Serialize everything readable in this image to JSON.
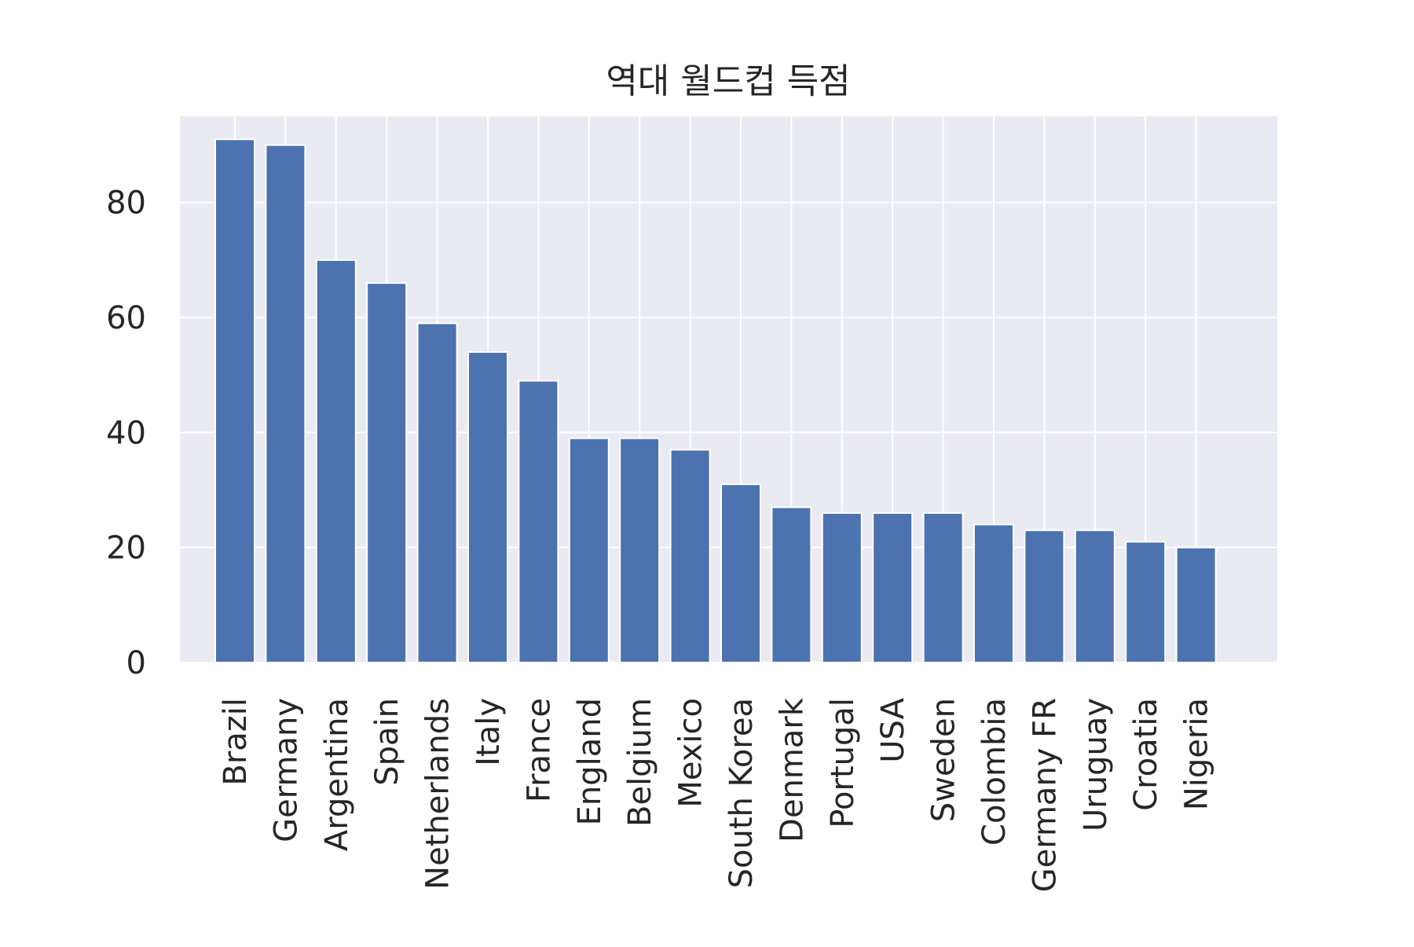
{
  "chart_data": {
    "type": "bar",
    "title": "역대 월드컵 득점",
    "xlabel": "",
    "ylabel": "",
    "categories": [
      "Brazil",
      "Germany",
      "Argentina",
      "Spain",
      "Netherlands",
      "Italy",
      "France",
      "England",
      "Belgium",
      "Mexico",
      "South Korea",
      "Denmark",
      "Portugal",
      "USA",
      "Sweden",
      "Colombia",
      "Germany FR",
      "Uruguay",
      "Croatia",
      "Nigeria"
    ],
    "values": [
      91,
      90,
      70,
      66,
      59,
      54,
      49,
      39,
      39,
      37,
      31,
      27,
      26,
      26,
      26,
      24,
      23,
      23,
      21,
      20
    ],
    "ylim": [
      0,
      95
    ],
    "yticks": [
      0,
      20,
      40,
      60,
      80
    ],
    "grid": true,
    "legend": "none",
    "colors": {
      "bar": "#4c72b0",
      "plot_background": "#eaeaf2",
      "grid": "#ffffff"
    }
  }
}
